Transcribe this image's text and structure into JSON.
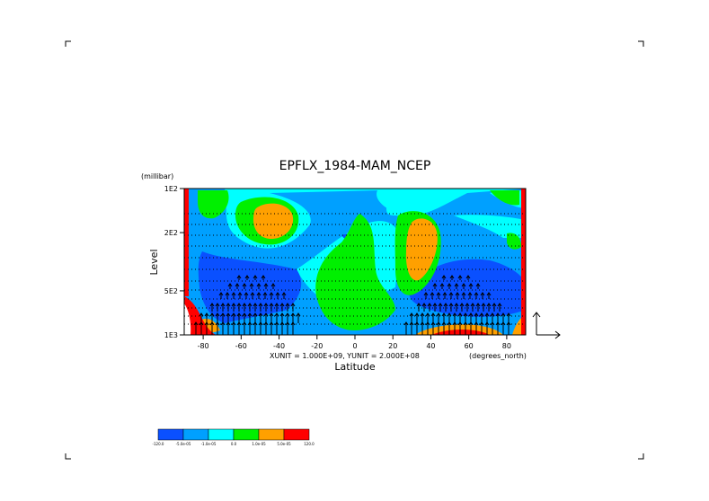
{
  "chart_data": {
    "type": "heatmap",
    "title": "EPFLX_1984-MAM_NCEP",
    "xlabel": "Latitude",
    "x_units": "(degrees_north)",
    "ylabel": "Level",
    "y_units": "(millibar)",
    "vector_scale_text": "XUNIT = 1.000E+09, YUNIT = 2.000E+08",
    "xlim": [
      -90,
      90
    ],
    "ylim": [
      1000,
      100
    ],
    "y_scale": "log",
    "x_ticks": [
      -80,
      -60,
      -40,
      -20,
      0,
      20,
      40,
      60,
      80
    ],
    "x_tick_labels": [
      "-80",
      "-60",
      "-40",
      "-20",
      "0",
      "20",
      "40",
      "60",
      "80"
    ],
    "y_ticks": [
      100,
      200,
      500,
      1000
    ],
    "y_tick_labels": [
      "1E2",
      "2E2",
      "5E2",
      "1E3"
    ],
    "color_levels": [
      "-120.0",
      "-5.0e-05",
      "-1.0e-05",
      "0.0",
      "1.0e-05",
      "5.0e-05",
      "120.0"
    ],
    "colors": [
      "#0a50ff",
      "#00a0ff",
      "#00ffff",
      "#00f000",
      "#ffa000",
      "#ff0000"
    ],
    "grid": "dotted horizontal"
  }
}
